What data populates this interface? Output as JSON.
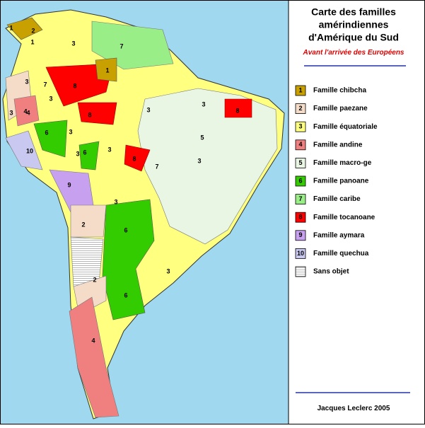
{
  "header": {
    "title_lines": [
      "Carte des familles",
      "amérindiennes",
      "d'Amérique du Sud"
    ],
    "subtitle": "Avant l'arrivée des Européens"
  },
  "legend": [
    {
      "number": "1",
      "label": "Famille chibcha",
      "color": "#c8a000"
    },
    {
      "number": "2",
      "label": "Famille paezane",
      "color": "#f5dcc8"
    },
    {
      "number": "3",
      "label": "Famille équatoriale",
      "color": "#ffff80"
    },
    {
      "number": "4",
      "label": "Famille andine",
      "color": "#f08080"
    },
    {
      "number": "5",
      "label": "Famille macro-ge",
      "color": "#eaf6e4"
    },
    {
      "number": "6",
      "label": "Famille panoane",
      "color": "#33cc00"
    },
    {
      "number": "7",
      "label": "Famille caribe",
      "color": "#99ee88"
    },
    {
      "number": "8",
      "label": "Famille tocanoane",
      "color": "#ff0000"
    },
    {
      "number": "9",
      "label": "Famille aymara",
      "color": "#c8a0f0"
    },
    {
      "number": "10",
      "label": "Famille quechua",
      "color": "#c8c8f0"
    },
    {
      "label": "Sans objet"
    }
  ],
  "map": {
    "labels": [
      "1",
      "2",
      "1",
      "3",
      "7",
      "1",
      "3",
      "7",
      "8",
      "3",
      "4",
      "4",
      "6",
      "3",
      "8",
      "3",
      "6",
      "3",
      "8",
      "7",
      "5",
      "3",
      "3",
      "3",
      "9",
      "10",
      "2",
      "3",
      "6",
      "3",
      "6",
      "2",
      "4",
      "8",
      "3"
    ]
  },
  "footer": {
    "author": "Jacques Leclerc 2005"
  }
}
